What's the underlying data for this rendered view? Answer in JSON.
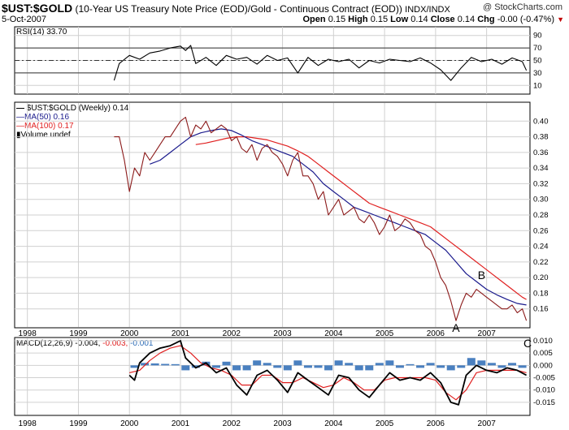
{
  "header": {
    "symbol": "$UST:$GOLD",
    "description": "(10-Year US Treasury Note Price (EOD)/Gold - Continuous Contract (EOD))",
    "exchange": "INDX/INDX",
    "date": "5-Oct-2007",
    "watermark": "@ StockCharts.com",
    "quote_label_open": "Open",
    "quote_open": "0.15",
    "quote_label_high": "High",
    "quote_high": "0.15",
    "quote_label_low": "Low",
    "quote_low": "0.14",
    "quote_label_close": "Close",
    "quote_close": "0.14",
    "quote_label_chg": "Chg",
    "quote_chg": "-0.00 (-0.47%)"
  },
  "rsi_panel": {
    "label": "RSI(14) 33.70",
    "ticks": [
      "90",
      "70",
      "50",
      "30",
      "10"
    ]
  },
  "price_panel": {
    "legend_price": "$UST:$GOLD (Weekly) 0.14",
    "legend_ma50": "MA(50) 0.16",
    "legend_ma100": "MA(100) 0.17",
    "legend_volume": "Volume undef",
    "annotation_a": "A",
    "annotation_b": "B",
    "annotation_c": "C"
  },
  "macd_panel": {
    "label_prefix": "MACD(12,26,9)",
    "value_macd": "-0.004,",
    "value_signal": "-0.003,",
    "value_hist": "-0.001"
  },
  "colors": {
    "price": "#8b1a1a",
    "ma50": "#1a1a8c",
    "ma100": "#e02020",
    "macd": "#000000",
    "signal": "#e02020",
    "histogram": "#2a6ab5",
    "grid": "#d0d0d0"
  },
  "chart_data": [
    {
      "type": "line",
      "title": "RSI(14) 33.70",
      "x_labels": [
        "1998",
        "1999",
        "2000",
        "2001",
        "2002",
        "2003",
        "2004",
        "2005",
        "2006",
        "2007"
      ],
      "ylim": [
        0,
        100
      ],
      "yticks": [
        90,
        70,
        50,
        30,
        10
      ],
      "reference_lines": [
        70,
        50,
        30
      ],
      "series": [
        {
          "name": "RSI(14)",
          "x": [
            1999.7,
            1999.8,
            2000.0,
            2000.2,
            2000.4,
            2000.6,
            2000.8,
            2001.0,
            2001.1,
            2001.2,
            2001.3,
            2001.5,
            2001.7,
            2001.9,
            2002.1,
            2002.3,
            2002.5,
            2002.7,
            2002.9,
            2003.1,
            2003.3,
            2003.5,
            2003.7,
            2003.9,
            2004.1,
            2004.3,
            2004.5,
            2004.7,
            2004.9,
            2005.1,
            2005.3,
            2005.5,
            2005.7,
            2005.9,
            2006.1,
            2006.3,
            2006.5,
            2006.7,
            2006.9,
            2007.1,
            2007.3,
            2007.5,
            2007.7,
            2007.78
          ],
          "values": [
            18,
            45,
            58,
            52,
            62,
            65,
            70,
            73,
            66,
            74,
            45,
            55,
            42,
            58,
            52,
            55,
            44,
            58,
            50,
            54,
            30,
            55,
            42,
            52,
            48,
            52,
            38,
            50,
            46,
            52,
            50,
            48,
            54,
            46,
            35,
            18,
            38,
            55,
            48,
            52,
            44,
            54,
            48,
            34
          ]
        }
      ]
    },
    {
      "type": "line",
      "title": "$UST:$GOLD (Weekly) 0.14",
      "x_labels": [
        "1998",
        "1999",
        "2000",
        "2001",
        "2002",
        "2003",
        "2004",
        "2005",
        "2006",
        "2007"
      ],
      "ylim": [
        0.14,
        0.42
      ],
      "yticks": [
        0.4,
        0.38,
        0.36,
        0.34,
        0.32,
        0.3,
        0.28,
        0.26,
        0.24,
        0.22,
        0.2,
        0.18,
        0.16
      ],
      "series": [
        {
          "name": "$UST:$GOLD (Weekly)",
          "x": [
            1999.7,
            1999.8,
            1999.9,
            2000.0,
            2000.1,
            2000.2,
            2000.3,
            2000.4,
            2000.5,
            2000.6,
            2000.7,
            2000.8,
            2000.9,
            2001.0,
            2001.1,
            2001.2,
            2001.3,
            2001.4,
            2001.5,
            2001.6,
            2001.7,
            2001.8,
            2001.9,
            2002.0,
            2002.1,
            2002.2,
            2002.3,
            2002.4,
            2002.5,
            2002.6,
            2002.7,
            2002.8,
            2002.9,
            2003.0,
            2003.1,
            2003.2,
            2003.3,
            2003.4,
            2003.5,
            2003.6,
            2003.7,
            2003.8,
            2003.9,
            2004.0,
            2004.1,
            2004.2,
            2004.3,
            2004.4,
            2004.5,
            2004.6,
            2004.7,
            2004.8,
            2004.9,
            2005.0,
            2005.1,
            2005.2,
            2005.3,
            2005.4,
            2005.5,
            2005.6,
            2005.7,
            2005.8,
            2005.9,
            2006.0,
            2006.1,
            2006.2,
            2006.3,
            2006.4,
            2006.5,
            2006.6,
            2006.7,
            2006.8,
            2006.9,
            2007.0,
            2007.1,
            2007.2,
            2007.3,
            2007.4,
            2007.5,
            2007.6,
            2007.7,
            2007.78
          ],
          "values": [
            0.38,
            0.38,
            0.35,
            0.31,
            0.34,
            0.33,
            0.36,
            0.35,
            0.36,
            0.37,
            0.38,
            0.38,
            0.39,
            0.4,
            0.405,
            0.38,
            0.395,
            0.39,
            0.4,
            0.385,
            0.39,
            0.395,
            0.39,
            0.375,
            0.38,
            0.365,
            0.36,
            0.37,
            0.35,
            0.365,
            0.37,
            0.36,
            0.355,
            0.345,
            0.33,
            0.35,
            0.36,
            0.33,
            0.33,
            0.32,
            0.3,
            0.31,
            0.28,
            0.29,
            0.3,
            0.28,
            0.285,
            0.29,
            0.275,
            0.27,
            0.28,
            0.27,
            0.255,
            0.265,
            0.28,
            0.26,
            0.265,
            0.275,
            0.27,
            0.26,
            0.255,
            0.24,
            0.235,
            0.22,
            0.2,
            0.19,
            0.17,
            0.145,
            0.165,
            0.18,
            0.175,
            0.185,
            0.18,
            0.175,
            0.17,
            0.165,
            0.16,
            0.16,
            0.165,
            0.155,
            0.16,
            0.145
          ]
        },
        {
          "name": "MA(50)",
          "x": [
            2000.4,
            2000.6,
            2000.8,
            2001.0,
            2001.2,
            2001.4,
            2001.6,
            2001.8,
            2002.0,
            2002.2,
            2002.4,
            2002.6,
            2002.8,
            2003.0,
            2003.2,
            2003.4,
            2003.6,
            2003.8,
            2004.0,
            2004.2,
            2004.4,
            2004.6,
            2004.8,
            2005.0,
            2005.2,
            2005.4,
            2005.6,
            2005.8,
            2006.0,
            2006.2,
            2006.4,
            2006.6,
            2006.8,
            2007.0,
            2007.2,
            2007.4,
            2007.6,
            2007.78
          ],
          "values": [
            0.345,
            0.35,
            0.36,
            0.37,
            0.38,
            0.385,
            0.388,
            0.39,
            0.388,
            0.382,
            0.375,
            0.37,
            0.365,
            0.36,
            0.355,
            0.345,
            0.335,
            0.32,
            0.31,
            0.3,
            0.29,
            0.285,
            0.28,
            0.275,
            0.27,
            0.265,
            0.26,
            0.255,
            0.245,
            0.235,
            0.22,
            0.205,
            0.195,
            0.185,
            0.178,
            0.172,
            0.167,
            0.165
          ]
        },
        {
          "name": "MA(100)",
          "x": [
            2001.3,
            2001.5,
            2001.7,
            2001.9,
            2002.1,
            2002.3,
            2002.5,
            2002.7,
            2002.9,
            2003.1,
            2003.3,
            2003.5,
            2003.7,
            2003.9,
            2004.1,
            2004.3,
            2004.5,
            2004.7,
            2004.9,
            2005.1,
            2005.3,
            2005.5,
            2005.7,
            2005.9,
            2006.1,
            2006.3,
            2006.5,
            2006.7,
            2006.9,
            2007.1,
            2007.3,
            2007.5,
            2007.7,
            2007.78
          ],
          "values": [
            0.37,
            0.372,
            0.375,
            0.378,
            0.38,
            0.38,
            0.378,
            0.376,
            0.372,
            0.368,
            0.362,
            0.355,
            0.345,
            0.335,
            0.325,
            0.315,
            0.305,
            0.295,
            0.29,
            0.285,
            0.28,
            0.275,
            0.27,
            0.265,
            0.255,
            0.245,
            0.235,
            0.225,
            0.215,
            0.205,
            0.195,
            0.185,
            0.175,
            0.172
          ]
        }
      ],
      "annotations": [
        {
          "text": "A",
          "x": 2006.4,
          "y": 0.145
        },
        {
          "text": "B",
          "x": 2006.9,
          "y": 0.19
        }
      ]
    },
    {
      "type": "line",
      "title": "MACD(12,26,9) -0.004, -0.003, -0.001",
      "x_labels": [
        "1998",
        "1999",
        "2000",
        "2001",
        "2002",
        "2003",
        "2004",
        "2005",
        "2006",
        "2007"
      ],
      "ylim": [
        -0.019,
        0.01
      ],
      "yticks": [
        0.01,
        0.005,
        0.0,
        -0.005,
        -0.01,
        -0.015
      ],
      "series": [
        {
          "name": "MACD",
          "x": [
            2000.0,
            2000.1,
            2000.2,
            2000.4,
            2000.6,
            2000.8,
            2001.0,
            2001.1,
            2001.3,
            2001.5,
            2001.7,
            2001.9,
            2002.1,
            2002.3,
            2002.5,
            2002.7,
            2002.9,
            2003.1,
            2003.3,
            2003.5,
            2003.7,
            2003.9,
            2004.1,
            2004.3,
            2004.5,
            2004.7,
            2004.9,
            2005.1,
            2005.3,
            2005.5,
            2005.7,
            2005.9,
            2006.1,
            2006.3,
            2006.45,
            2006.6,
            2006.8,
            2007.0,
            2007.2,
            2007.4,
            2007.6,
            2007.78
          ],
          "values": [
            -0.004,
            -0.006,
            0.001,
            0.005,
            0.007,
            0.008,
            0.01,
            0.003,
            -0.001,
            0.001,
            -0.003,
            -0.001,
            -0.008,
            -0.012,
            -0.004,
            -0.002,
            -0.006,
            -0.011,
            -0.003,
            -0.006,
            -0.009,
            -0.012,
            -0.004,
            -0.005,
            -0.01,
            -0.013,
            -0.008,
            -0.003,
            -0.006,
            -0.005,
            -0.006,
            -0.003,
            -0.007,
            -0.015,
            -0.016,
            -0.004,
            0.0,
            -0.002,
            -0.003,
            -0.001,
            -0.002,
            -0.004
          ]
        },
        {
          "name": "Signal",
          "x": [
            2000.0,
            2000.2,
            2000.4,
            2000.6,
            2000.8,
            2001.0,
            2001.2,
            2001.4,
            2001.6,
            2001.8,
            2002.0,
            2002.2,
            2002.4,
            2002.6,
            2002.8,
            2003.0,
            2003.2,
            2003.4,
            2003.6,
            2003.8,
            2004.0,
            2004.2,
            2004.4,
            2004.6,
            2004.8,
            2005.0,
            2005.2,
            2005.4,
            2005.6,
            2005.8,
            2006.0,
            2006.2,
            2006.4,
            2006.6,
            2006.8,
            2007.0,
            2007.2,
            2007.4,
            2007.6,
            2007.78
          ],
          "values": [
            -0.003,
            -0.002,
            0.002,
            0.005,
            0.007,
            0.008,
            0.005,
            0.001,
            -0.001,
            -0.002,
            -0.004,
            -0.008,
            -0.008,
            -0.004,
            -0.004,
            -0.007,
            -0.007,
            -0.005,
            -0.007,
            -0.009,
            -0.008,
            -0.005,
            -0.007,
            -0.01,
            -0.01,
            -0.006,
            -0.005,
            -0.005,
            -0.005,
            -0.005,
            -0.006,
            -0.011,
            -0.014,
            -0.01,
            -0.003,
            -0.002,
            -0.002,
            -0.002,
            -0.002,
            -0.003
          ]
        },
        {
          "name": "Histogram",
          "x": [
            2000.1,
            2000.3,
            2000.5,
            2000.7,
            2000.9,
            2001.1,
            2001.3,
            2001.5,
            2001.7,
            2001.9,
            2002.1,
            2002.3,
            2002.5,
            2002.7,
            2002.9,
            2003.1,
            2003.3,
            2003.5,
            2003.7,
            2003.9,
            2004.1,
            2004.3,
            2004.5,
            2004.7,
            2004.9,
            2005.1,
            2005.3,
            2005.5,
            2005.7,
            2005.9,
            2006.1,
            2006.3,
            2006.5,
            2006.7,
            2006.9,
            2007.1,
            2007.3,
            2007.5,
            2007.7
          ],
          "values": [
            -0.001,
            0.001,
            0.0008,
            0.0006,
            0.0005,
            -0.002,
            -0.001,
            0.0015,
            -0.001,
            0.0015,
            -0.002,
            -0.002,
            0.002,
            0.001,
            -0.001,
            -0.002,
            0.002,
            -0.001,
            -0.001,
            -0.002,
            0.002,
            0.001,
            -0.002,
            -0.002,
            0.001,
            0.002,
            -0.001,
            0.0005,
            -0.001,
            0.001,
            -0.001,
            -0.002,
            -0.001,
            0.003,
            0.002,
            0.001,
            -0.001,
            0.001,
            -0.001
          ]
        }
      ]
    }
  ]
}
